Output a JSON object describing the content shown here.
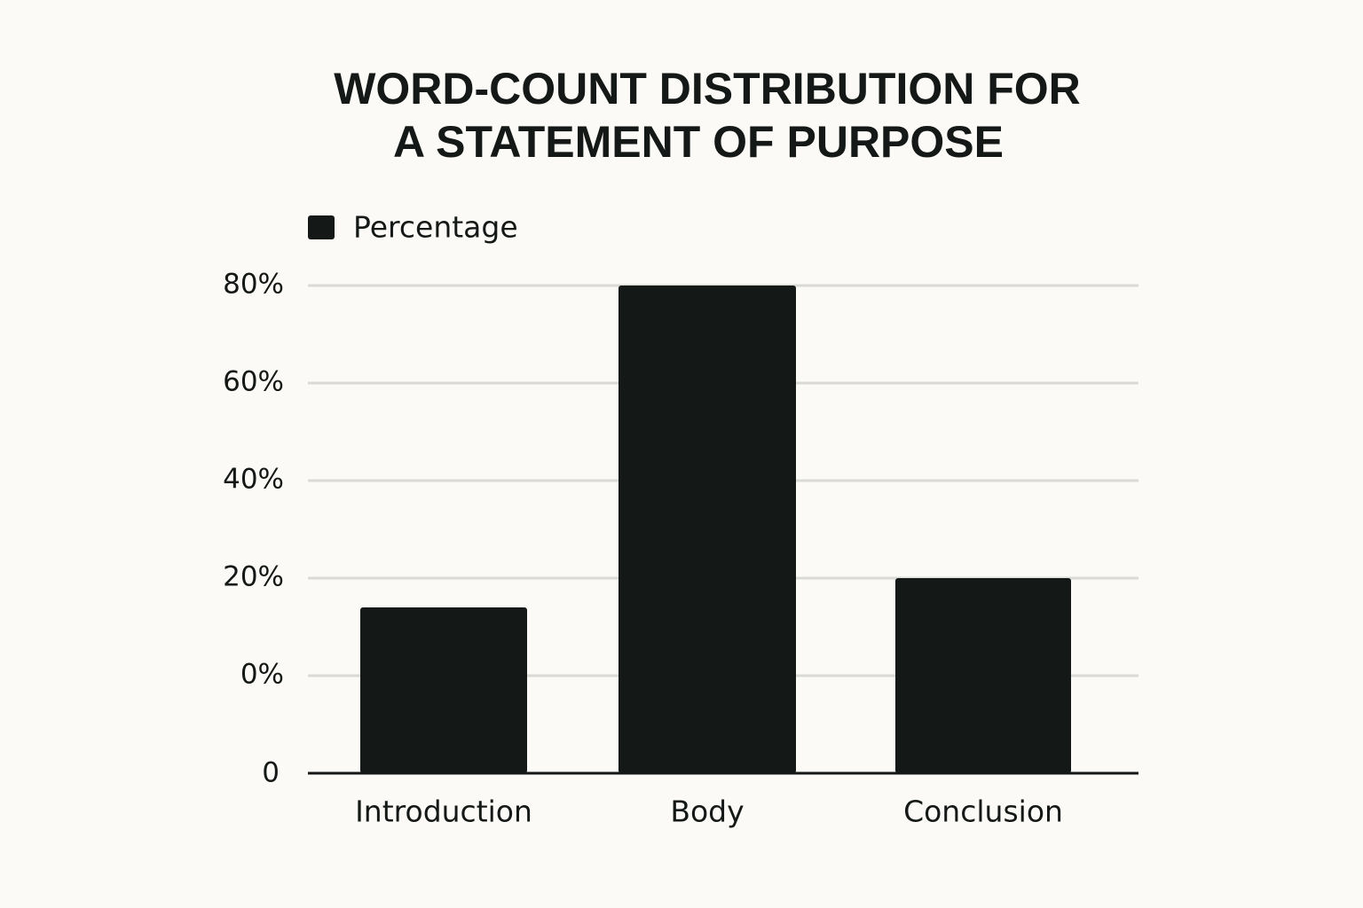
{
  "chart_data": {
    "type": "bar",
    "title": [
      "WORD-COUNT DISTRIBUTION FOR",
      "A STATEMENT OF PURPOSE"
    ],
    "categories": [
      "Introduction",
      "Body",
      "Conclusion"
    ],
    "series": [
      {
        "name": "Percentage",
        "color": "#141816",
        "values": [
          14,
          80,
          20
        ]
      }
    ],
    "ylim": [
      -20,
      90
    ],
    "yticks": [
      {
        "value": 0,
        "label": "0%"
      },
      {
        "value": 20,
        "label": "20%"
      },
      {
        "value": 40,
        "label": "40%"
      },
      {
        "value": 60,
        "label": "60%"
      },
      {
        "value": 80,
        "label": "80%"
      }
    ],
    "baseline_label": "0",
    "grid": true,
    "legend": "top-left"
  }
}
